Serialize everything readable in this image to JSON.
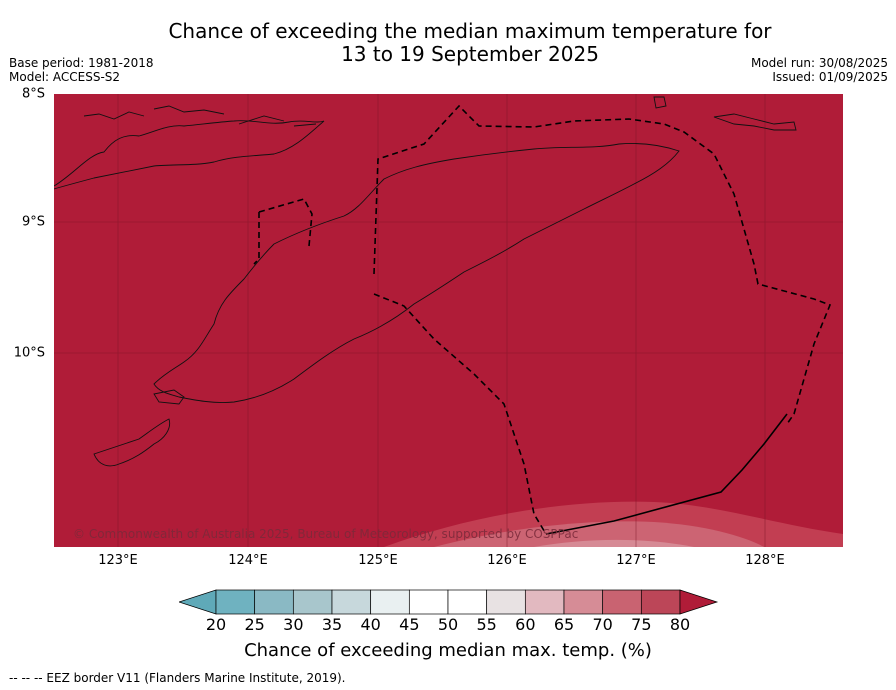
{
  "title_line1": "Chance of exceeding the median maximum temperature for",
  "title_line2": "13 to 19 September 2025",
  "base_period": "Base period: 1981-2018",
  "model": "Model: ACCESS-S2",
  "model_run": "Model run: 30/08/2025",
  "issued": "Issued: 01/09/2025",
  "lat_labels": [
    "8°S",
    "9°S",
    "10°S"
  ],
  "lon_labels": [
    "123°E",
    "124°E",
    "125°E",
    "126°E",
    "127°E",
    "128°E"
  ],
  "copyright": "© Commonwealth of Australia 2025, Bureau of Meteorology, supported by COSPPac",
  "colorbar": {
    "ticks": [
      "20",
      "25",
      "30",
      "35",
      "40",
      "45",
      "50",
      "55",
      "60",
      "65",
      "70",
      "75",
      "80"
    ],
    "label": "Chance of exceeding median max. temp. (%)",
    "colors": [
      "#5fa9b8",
      "#6fb2c0",
      "#8ab9c4",
      "#a8c6cc",
      "#c7d8dc",
      "#e9f0f1",
      "#ffffff",
      "#ffffff",
      "#e8e2e3",
      "#e2b9c0",
      "#d68c96",
      "#c96371",
      "#bc4658",
      "#b01c38"
    ],
    "dominant_color": "#b01c38"
  },
  "footer": "--  --  -- EEZ border V11 (Flanders Marine Institute, 2019).",
  "map": {
    "lat_range": [
      "8°S",
      "11.5°S"
    ],
    "lon_range": [
      "122.5°E",
      "128.6°E"
    ],
    "dominant_category": "80",
    "features": [
      "Timor coastline",
      "EEZ border"
    ]
  }
}
